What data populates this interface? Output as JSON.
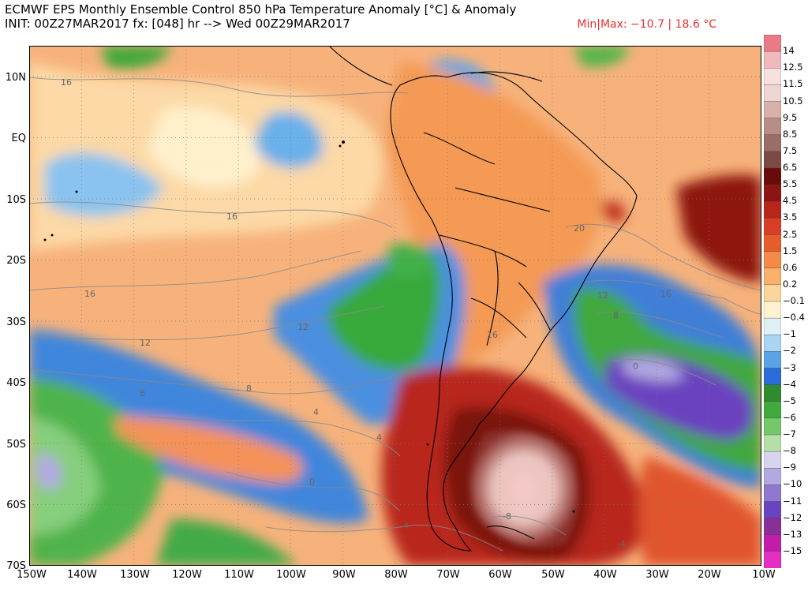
{
  "header": {
    "title": "ECMWF EPS Monthly Ensemble Control 850 hPa Temperature Anomaly [°C] & Anomaly",
    "init_line": "INIT: 00Z27MAR2017 fx: [048] hr --> Wed 00Z29MAR2017",
    "minmax": "Min|Max: −10.7 | 18.6 °C"
  },
  "map": {
    "lat_labels": [
      "10N",
      "EQ",
      "10S",
      "20S",
      "30S",
      "40S",
      "50S",
      "60S",
      "70S"
    ],
    "lon_labels": [
      "150W",
      "140W",
      "130W",
      "120W",
      "110W",
      "100W",
      "90W",
      "80W",
      "70W",
      "60W",
      "50W",
      "40W",
      "30W",
      "20W",
      "10W"
    ],
    "contour_labels": [
      "16",
      "16",
      "16",
      "16",
      "20",
      "12",
      "12",
      "12",
      "8",
      "8",
      "4",
      "0",
      "-4",
      "4",
      "16",
      "0",
      "-8",
      "-4",
      "8"
    ]
  },
  "colorbar": {
    "levels": [
      "14",
      "12.5",
      "11.5",
      "10.5",
      "9.5",
      "8.5",
      "7.5",
      "6.5",
      "5.5",
      "4.5",
      "3.5",
      "2.5",
      "1.5",
      "0.6",
      "0.2",
      "−0.1",
      "−0.4",
      "−1",
      "−2",
      "−3",
      "−4",
      "−5",
      "−6",
      "−7",
      "−8",
      "−9",
      "−10",
      "−11",
      "−12",
      "−13",
      "−15"
    ],
    "colors": [
      "#e87b86",
      "#f1b8bd",
      "#f7e0de",
      "#efd6d3",
      "#d8b1ab",
      "#b98d87",
      "#9a6d66",
      "#7a4a43",
      "#6a0b0b",
      "#8d1410",
      "#b8251a",
      "#d73e25",
      "#e85c2c",
      "#f48a45",
      "#f8b06a",
      "#fcd59b",
      "#fff3cf",
      "#dfeff8",
      "#a9d5f2",
      "#5aa3e6",
      "#2a6bd8",
      "#2f8b2f",
      "#3faa3d",
      "#74c86a",
      "#b4e0a8",
      "#d8d4ee",
      "#b3a8e2",
      "#8e78d0",
      "#6a43c0",
      "#8a2f9a",
      "#c21ca8",
      "#e52ec4"
    ]
  }
}
